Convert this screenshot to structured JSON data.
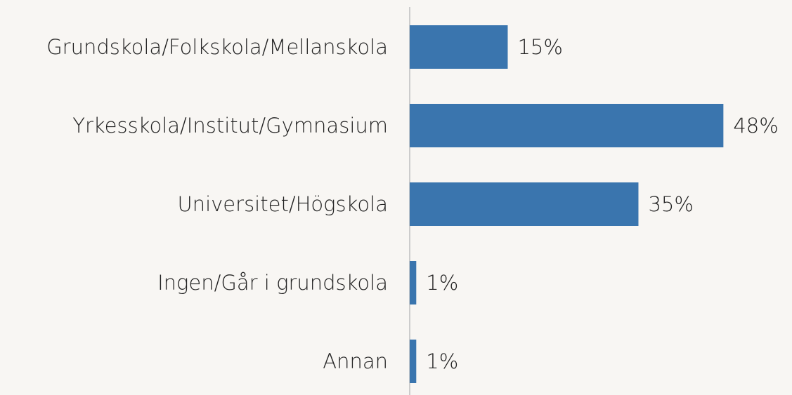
{
  "chart_data": {
    "type": "barh",
    "categories": [
      "Grundskola/Folkskola/Mellanskola",
      "Yrkesskola/Institut/Gymnasium",
      "Universitet/Högskola",
      "Ingen/Går i grundskola",
      "Annan"
    ],
    "values": [
      15,
      48,
      35,
      1,
      1
    ],
    "value_labels": [
      "15%",
      "48%",
      "35%",
      "1%",
      "1%"
    ],
    "color": "#3a75ae",
    "xlim": [
      0,
      58.5
    ]
  }
}
